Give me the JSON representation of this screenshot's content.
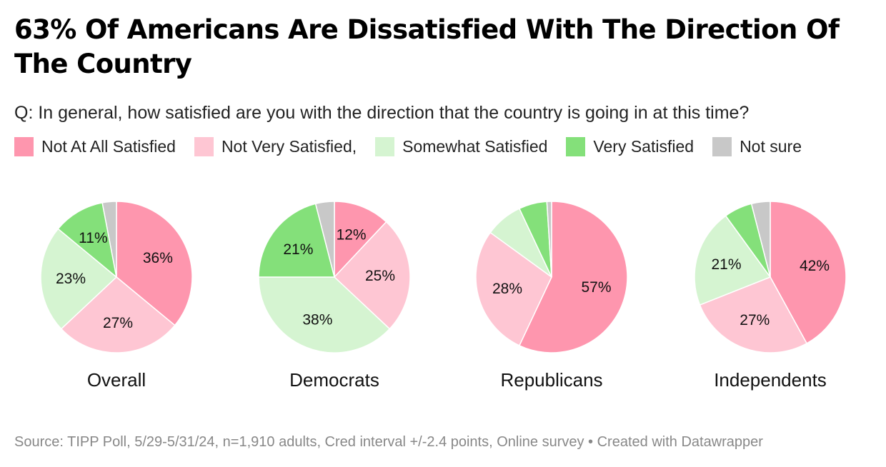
{
  "title": "63% Of Americans Are Dissatisfied With The Direction Of The Country",
  "subtitle": "Q: In general, how satisfied are you with the direction that the country is going in at this time?",
  "legend": [
    {
      "label": "Not At All Satisfied",
      "color": "#fe96ae"
    },
    {
      "label": "Not Very Satisfied,",
      "color": "#fec6d3"
    },
    {
      "label": "Somewhat Satisfied",
      "color": "#d5f4d1"
    },
    {
      "label": "Very Satisfied",
      "color": "#84e07a"
    },
    {
      "label": "Not sure",
      "color": "#c8c8c8"
    }
  ],
  "chart_data": {
    "type": "pie",
    "series_order": [
      "Not At All Satisfied",
      "Not Very Satisfied,",
      "Somewhat Satisfied",
      "Very Satisfied",
      "Not sure"
    ],
    "charts": [
      {
        "name": "Overall",
        "values": [
          36,
          27,
          23,
          11,
          3
        ],
        "labels": [
          "36%",
          "27%",
          "23%",
          "11%",
          ""
        ]
      },
      {
        "name": "Democrats",
        "values": [
          12,
          25,
          38,
          21,
          4
        ],
        "labels": [
          "12%",
          "25%",
          "38%",
          "21%",
          ""
        ]
      },
      {
        "name": "Republicans",
        "values": [
          57,
          28,
          8,
          6,
          1
        ],
        "labels": [
          "57%",
          "28%",
          "",
          "",
          ""
        ]
      },
      {
        "name": "Independents",
        "values": [
          42,
          27,
          21,
          6,
          4
        ],
        "labels": [
          "42%",
          "27%",
          "21%",
          "",
          ""
        ]
      }
    ]
  },
  "source": "Source: TIPP Poll, 5/29-5/31/24, n=1,910 adults, Cred interval +/-2.4 points, Online survey • Created with Datawrapper"
}
